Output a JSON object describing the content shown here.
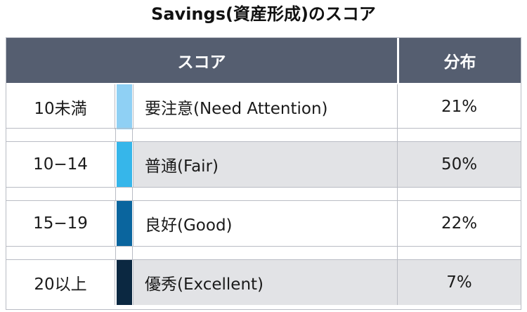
{
  "title": "Savings(資産形成)のスコア",
  "header": {
    "score": "スコア",
    "distribution": "分布"
  },
  "rows": [
    {
      "range": "10未満",
      "label": "要注意(Need Attention)",
      "distribution": "21%",
      "color": "#8fd0f4"
    },
    {
      "range": "10−14",
      "label": "普通(Fair)",
      "distribution": "50%",
      "color": "#36b6ea"
    },
    {
      "range": "15−19",
      "label": "良好(Good)",
      "distribution": "22%",
      "color": "#0a659e"
    },
    {
      "range": "20以上",
      "label": "優秀(Excellent)",
      "distribution": "7%",
      "color": "#0b2841"
    }
  ],
  "colors": {
    "header_bg": "#555e70",
    "shaded_row": "#e2e3e6",
    "border": "#b9bcc4"
  }
}
